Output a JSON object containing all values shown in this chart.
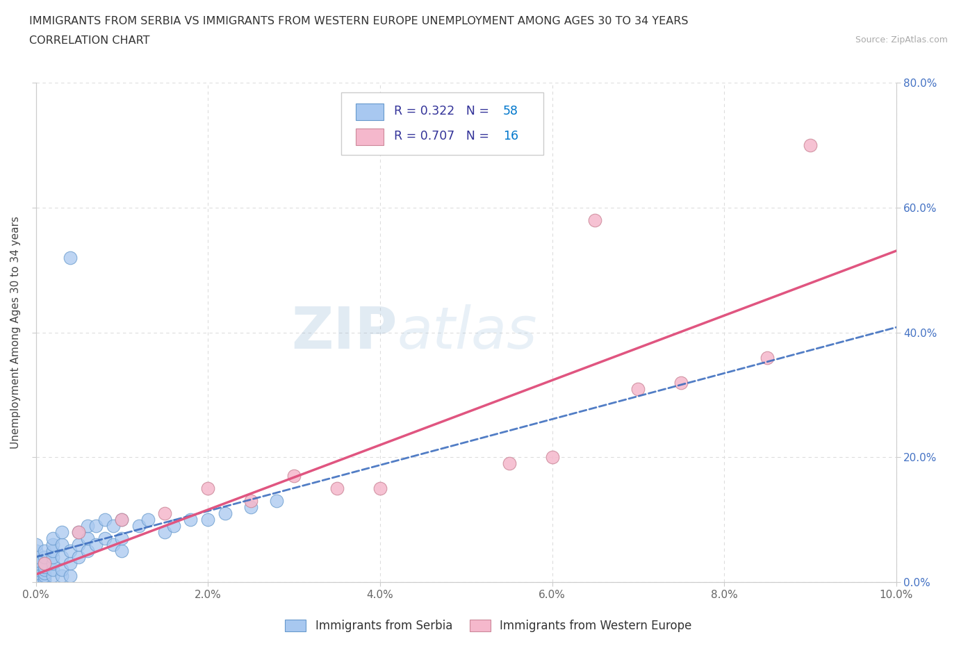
{
  "title_line1": "IMMIGRANTS FROM SERBIA VS IMMIGRANTS FROM WESTERN EUROPE UNEMPLOYMENT AMONG AGES 30 TO 34 YEARS",
  "title_line2": "CORRELATION CHART",
  "source_text": "Source: ZipAtlas.com",
  "ylabel": "Unemployment Among Ages 30 to 34 years",
  "xlim": [
    0.0,
    0.1
  ],
  "ylim": [
    0.0,
    0.8
  ],
  "xticks": [
    0.0,
    0.02,
    0.04,
    0.06,
    0.08,
    0.1
  ],
  "yticks": [
    0.0,
    0.2,
    0.4,
    0.6,
    0.8
  ],
  "xtick_labels": [
    "0.0%",
    "2.0%",
    "4.0%",
    "6.0%",
    "8.0%",
    "10.0%"
  ],
  "ytick_labels": [
    "0.0%",
    "20.0%",
    "40.0%",
    "60.0%",
    "80.0%"
  ],
  "serbia_color": "#a8c8f0",
  "serbia_edge_color": "#6699cc",
  "western_color": "#f5b8cc",
  "western_edge_color": "#cc8899",
  "serbia_line_color": "#3366bb",
  "western_line_color": "#e05580",
  "serbia_R": 0.322,
  "serbia_N": 58,
  "western_R": 0.707,
  "western_N": 16,
  "legend_text_color": "#333399",
  "legend_N_color": "#0077cc",
  "watermark_zip": "ZIP",
  "watermark_atlas": "atlas",
  "serbia_x": [
    0.0,
    0.0,
    0.0,
    0.0,
    0.0,
    0.0,
    0.0,
    0.0,
    0.0,
    0.0,
    0.001,
    0.001,
    0.001,
    0.001,
    0.001,
    0.001,
    0.001,
    0.001,
    0.002,
    0.002,
    0.002,
    0.002,
    0.002,
    0.002,
    0.002,
    0.003,
    0.003,
    0.003,
    0.003,
    0.003,
    0.004,
    0.004,
    0.004,
    0.004,
    0.005,
    0.005,
    0.005,
    0.006,
    0.006,
    0.006,
    0.007,
    0.007,
    0.008,
    0.008,
    0.009,
    0.009,
    0.01,
    0.01,
    0.01,
    0.012,
    0.013,
    0.015,
    0.016,
    0.018,
    0.02,
    0.022,
    0.025,
    0.028
  ],
  "serbia_y": [
    0.005,
    0.01,
    0.015,
    0.02,
    0.025,
    0.03,
    0.035,
    0.04,
    0.05,
    0.06,
    0.005,
    0.01,
    0.015,
    0.02,
    0.025,
    0.03,
    0.04,
    0.05,
    0.01,
    0.02,
    0.03,
    0.04,
    0.05,
    0.06,
    0.07,
    0.01,
    0.02,
    0.04,
    0.06,
    0.08,
    0.01,
    0.03,
    0.05,
    0.52,
    0.04,
    0.06,
    0.08,
    0.05,
    0.07,
    0.09,
    0.06,
    0.09,
    0.07,
    0.1,
    0.06,
    0.09,
    0.05,
    0.07,
    0.1,
    0.09,
    0.1,
    0.08,
    0.09,
    0.1,
    0.1,
    0.11,
    0.12,
    0.13
  ],
  "western_x": [
    0.001,
    0.005,
    0.01,
    0.015,
    0.02,
    0.025,
    0.03,
    0.035,
    0.04,
    0.055,
    0.06,
    0.065,
    0.07,
    0.075,
    0.085,
    0.09
  ],
  "western_y": [
    0.03,
    0.08,
    0.1,
    0.11,
    0.15,
    0.13,
    0.17,
    0.15,
    0.15,
    0.19,
    0.2,
    0.58,
    0.31,
    0.32,
    0.36,
    0.7
  ],
  "background_color": "#ffffff",
  "grid_color": "#dddddd",
  "spine_color": "#cccccc",
  "ytick_color": "#4472c4",
  "xtick_color": "#666666"
}
